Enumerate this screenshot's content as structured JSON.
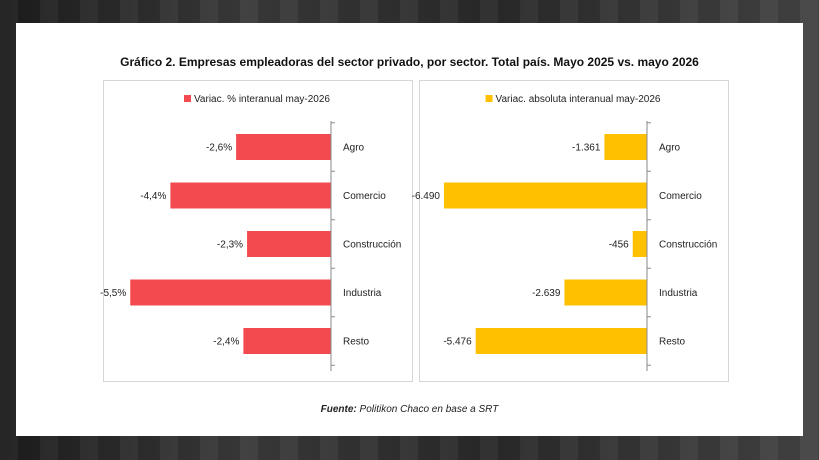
{
  "title": "Gráfico 2. Empresas empleadoras del sector privado, por sector. Total país. Mayo 2025 vs. mayo 2026",
  "source": {
    "label": "Fuente:",
    "text": " Politikon Chaco en base a SRT"
  },
  "colors": {
    "red": "#f24a4f",
    "yellow": "#ffc000",
    "axis": "#8a8a8a"
  },
  "chart_data": [
    {
      "type": "bar",
      "orientation": "horizontal",
      "legend": "Variac. % interanual may-2026",
      "legend_position": "top",
      "categories": [
        "Agro",
        "Comercio",
        "Construcción",
        "Industria",
        "Resto"
      ],
      "values": [
        -2.6,
        -4.4,
        -2.3,
        -5.5,
        -2.4
      ],
      "labels": [
        "-2,6%",
        "-4,4%",
        "-2,3%",
        "-5,5%",
        "-2,4%"
      ],
      "xlim": [
        -6.0,
        0
      ],
      "color": "#f24a4f"
    },
    {
      "type": "bar",
      "orientation": "horizontal",
      "legend": "Variac. absoluta interanual may-2026",
      "legend_position": "top",
      "categories": [
        "Agro",
        "Comercio",
        "Construcción",
        "Industria",
        "Resto"
      ],
      "values": [
        -1361,
        -6490,
        -456,
        -2639,
        -5476
      ],
      "labels": [
        "-1.361",
        "-6.490",
        "-456",
        "-2.639",
        "-5.476"
      ],
      "xlim": [
        -7000,
        0
      ],
      "color": "#ffc000"
    }
  ]
}
